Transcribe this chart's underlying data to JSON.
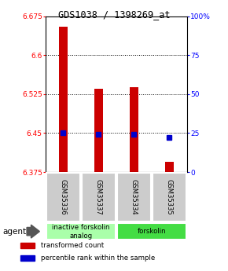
{
  "title": "GDS1038 / 1398269_at",
  "samples": [
    "GSM35336",
    "GSM35337",
    "GSM35334",
    "GSM35335"
  ],
  "bar_values": [
    6.655,
    6.535,
    6.538,
    6.395
  ],
  "bar_base": 6.375,
  "percentile_values": [
    6.45,
    6.448,
    6.447,
    6.442
  ],
  "ylim_left": [
    6.375,
    6.675
  ],
  "ylim_right": [
    0,
    100
  ],
  "yticks_left": [
    6.375,
    6.45,
    6.525,
    6.6,
    6.675
  ],
  "ytick_labels_left": [
    "6.375",
    "6.45",
    "6.525",
    "6.6",
    "6.675"
  ],
  "yticks_right": [
    0,
    25,
    50,
    75,
    100
  ],
  "ytick_labels_right": [
    "0",
    "25",
    "50",
    "75",
    "100%"
  ],
  "hlines": [
    6.45,
    6.525,
    6.6
  ],
  "bar_color": "#cc0000",
  "percentile_color": "#0000cc",
  "agent_groups": [
    {
      "label": "inactive forskolin\nanalog",
      "samples": [
        0,
        1
      ],
      "color": "#aaffaa"
    },
    {
      "label": "forskolin",
      "samples": [
        2,
        3
      ],
      "color": "#44dd44"
    }
  ],
  "legend_items": [
    {
      "color": "#cc0000",
      "label": "transformed count"
    },
    {
      "color": "#0000cc",
      "label": "percentile rank within the sample"
    }
  ],
  "agent_text": "agent",
  "bar_width": 0.25,
  "sample_box_color": "#cccccc",
  "title_fontsize": 8.5
}
